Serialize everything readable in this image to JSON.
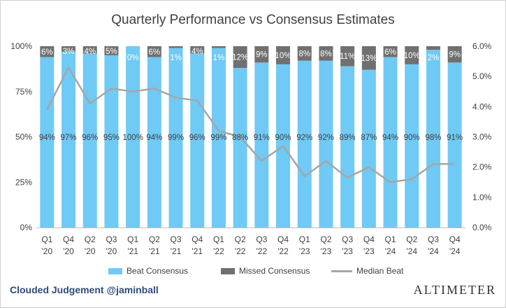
{
  "chart_data": {
    "type": "bar",
    "title": "Quarterly Performance vs Consensus Estimates",
    "categories": [
      [
        "Q1",
        "'20"
      ],
      [
        "Q4",
        "'20"
      ],
      [
        "Q2",
        "'20"
      ],
      [
        "Q3",
        "'20"
      ],
      [
        "Q1",
        "'21"
      ],
      [
        "Q2",
        "'21"
      ],
      [
        "Q3",
        "'21"
      ],
      [
        "Q4",
        "'21"
      ],
      [
        "Q1",
        "'22"
      ],
      [
        "Q2",
        "'22"
      ],
      [
        "Q3",
        "'22"
      ],
      [
        "Q4",
        "'22"
      ],
      [
        "Q1",
        "'23"
      ],
      [
        "Q2",
        "'23"
      ],
      [
        "Q3",
        "'23"
      ],
      [
        "Q4",
        "'23"
      ],
      [
        "Q1",
        "'24"
      ],
      [
        "Q2",
        "'24"
      ],
      [
        "Q3",
        "'24"
      ],
      [
        "Q4",
        "'24"
      ]
    ],
    "series": [
      {
        "name": "Beat Consensus",
        "type": "bar",
        "stacked": true,
        "axis": "left",
        "color": "#6fcaf5",
        "values": [
          94,
          97,
          96,
          95,
          100,
          94,
          99,
          96,
          99,
          88,
          91,
          90,
          92,
          92,
          89,
          87,
          94,
          90,
          98,
          91
        ],
        "labels": [
          "94%",
          "97%",
          "96%",
          "95%",
          "100%",
          "94%",
          "99%",
          "96%",
          "99%",
          "88%",
          "91%",
          "90%",
          "92%",
          "92%",
          "89%",
          "87%",
          "94%",
          "90%",
          "98%",
          "91%"
        ]
      },
      {
        "name": "Missed Consensus",
        "type": "bar",
        "stacked": true,
        "axis": "left",
        "color": "#707070",
        "values": [
          6,
          3,
          4,
          5,
          0,
          6,
          1,
          4,
          1,
          12,
          9,
          10,
          8,
          8,
          11,
          13,
          6,
          10,
          2,
          9
        ],
        "labels": [
          "6%",
          "3%",
          "4%",
          "5%",
          "0%",
          "6%",
          "1%",
          "4%",
          "1%",
          "12%",
          "9%",
          "10%",
          "8%",
          "8%",
          "11%",
          "13%",
          "6%",
          "10%",
          "2%",
          "9%"
        ]
      },
      {
        "name": "Median Beat",
        "type": "line",
        "axis": "right",
        "color": "#a6a6a6",
        "values": [
          3.9,
          5.3,
          4.1,
          4.6,
          4.5,
          4.6,
          4.3,
          4.2,
          3.2,
          3.0,
          2.2,
          2.7,
          1.7,
          2.2,
          1.65,
          2.0,
          1.5,
          1.6,
          2.1,
          2.1
        ]
      }
    ],
    "y_left": {
      "range": [
        0,
        100
      ],
      "ticks": [
        0,
        25,
        50,
        75,
        100
      ],
      "tick_labels": [
        "0%",
        "25%",
        "50%",
        "75%",
        "100%"
      ]
    },
    "y_right": {
      "range": [
        0,
        6
      ],
      "ticks": [
        0,
        1,
        2,
        3,
        4,
        5,
        6
      ],
      "tick_labels": [
        "0.0%",
        "1.0%",
        "2.0%",
        "3.0%",
        "4.0%",
        "5.0%",
        "6.0%"
      ]
    },
    "grid": false,
    "legend_position": "bottom"
  },
  "footer": {
    "left": "Clouded Judgement @jaminball",
    "right": "ALTIMETER"
  }
}
